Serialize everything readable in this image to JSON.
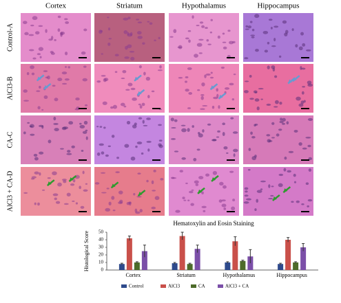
{
  "panel_grid": {
    "columns": [
      "Cortex",
      "Striatum",
      "Hypothalamus",
      "Hippocampus"
    ],
    "rows": [
      "Control-A",
      "AlCl3-B",
      "CA-C",
      "AlCl3 + CA-D"
    ]
  },
  "chart_data": {
    "type": "bar",
    "title": "Hematoxylin and Eosin Staining",
    "y_label": "Histological Score",
    "categories": [
      "Cortex",
      "Striatum",
      "Hypothalamus",
      "Hippocampus"
    ],
    "series": [
      {
        "name": "Control",
        "color": "#2e4a8c",
        "values": [
          8,
          9,
          10,
          8
        ],
        "errors": [
          1,
          1,
          1,
          1
        ]
      },
      {
        "name": "AlCl3",
        "color": "#c9504a",
        "values": [
          42,
          45,
          38,
          40
        ],
        "errors": [
          3,
          5,
          6,
          3
        ]
      },
      {
        "name": "CA",
        "color": "#4d6b2a",
        "values": [
          10,
          8,
          12,
          10
        ],
        "errors": [
          1,
          1,
          1,
          1
        ]
      },
      {
        "name": "AlCl3 + CA",
        "color": "#7b4fa8",
        "values": [
          25,
          28,
          18,
          30
        ],
        "errors": [
          8,
          5,
          9,
          5
        ]
      }
    ],
    "ylim": [
      0,
      50
    ],
    "yticks": [
      0,
      10,
      20,
      30,
      40,
      50
    ],
    "legend": "bottom"
  }
}
